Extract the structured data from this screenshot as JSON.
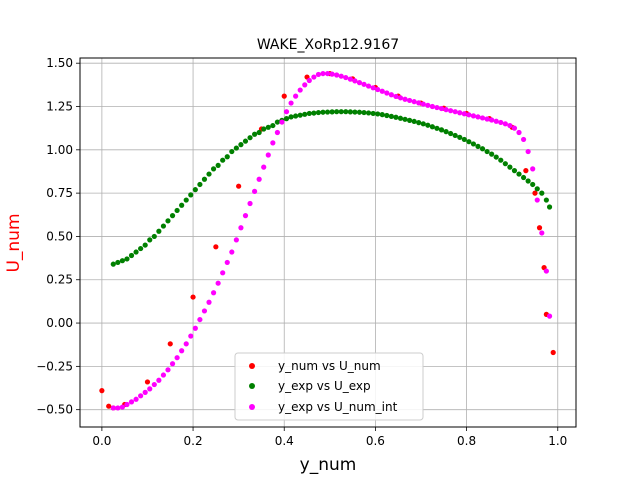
{
  "chart_data": {
    "type": "scatter",
    "title": "WAKE_XoRp12.9167",
    "xlabel": "y_num",
    "ylabel": "U_num",
    "ylabel_color": "#ff0000",
    "xlim": [
      -0.048,
      1.04
    ],
    "ylim": [
      -0.6,
      1.53
    ],
    "xticks": [
      0.0,
      0.2,
      0.4,
      0.6,
      0.8,
      1.0
    ],
    "xtick_labels": [
      "0.0",
      "0.2",
      "0.4",
      "0.6",
      "0.8",
      "1.0"
    ],
    "yticks": [
      -0.5,
      -0.25,
      0.0,
      0.25,
      0.5,
      0.75,
      1.0,
      1.25,
      1.5
    ],
    "ytick_labels": [
      "−0.50",
      "−0.25",
      "0.00",
      "0.25",
      "0.50",
      "0.75",
      "1.00",
      "1.25",
      "1.50"
    ],
    "grid": true,
    "legend_position": "bottom-center",
    "series": [
      {
        "name": "y_num vs U_num",
        "color": "#ff0000",
        "x": [
          0.0,
          0.015,
          0.025,
          0.05,
          0.1,
          0.15,
          0.2,
          0.25,
          0.3,
          0.35,
          0.4,
          0.45,
          0.5,
          0.55,
          0.6,
          0.65,
          0.7,
          0.75,
          0.8,
          0.85,
          0.9,
          0.93,
          0.95,
          0.96,
          0.97,
          0.975,
          0.99
        ],
        "y": [
          -0.39,
          -0.48,
          -0.49,
          -0.47,
          -0.34,
          -0.12,
          0.15,
          0.44,
          0.79,
          1.12,
          1.31,
          1.42,
          1.44,
          1.41,
          1.36,
          1.31,
          1.27,
          1.24,
          1.21,
          1.18,
          1.13,
          0.88,
          0.75,
          0.55,
          0.32,
          0.05,
          -0.17
        ]
      },
      {
        "name": "y_exp vs U_exp",
        "color": "#008000",
        "x": [
          0.025,
          0.035,
          0.045,
          0.055,
          0.065,
          0.075,
          0.085,
          0.095,
          0.105,
          0.115,
          0.125,
          0.135,
          0.145,
          0.155,
          0.165,
          0.175,
          0.185,
          0.195,
          0.205,
          0.215,
          0.225,
          0.235,
          0.245,
          0.255,
          0.265,
          0.275,
          0.285,
          0.295,
          0.305,
          0.315,
          0.325,
          0.335,
          0.345,
          0.355,
          0.365,
          0.375,
          0.385,
          0.395,
          0.405,
          0.415,
          0.425,
          0.435,
          0.445,
          0.455,
          0.465,
          0.475,
          0.485,
          0.495,
          0.505,
          0.515,
          0.525,
          0.535,
          0.545,
          0.555,
          0.565,
          0.575,
          0.585,
          0.595,
          0.605,
          0.615,
          0.625,
          0.635,
          0.645,
          0.655,
          0.665,
          0.675,
          0.685,
          0.695,
          0.705,
          0.715,
          0.725,
          0.735,
          0.745,
          0.755,
          0.765,
          0.775,
          0.785,
          0.795,
          0.805,
          0.815,
          0.825,
          0.835,
          0.845,
          0.855,
          0.865,
          0.875,
          0.885,
          0.895,
          0.905,
          0.915,
          0.925,
          0.935,
          0.945,
          0.955,
          0.965,
          0.975,
          0.982
        ],
        "y": [
          0.34,
          0.35,
          0.36,
          0.37,
          0.39,
          0.41,
          0.43,
          0.45,
          0.48,
          0.5,
          0.53,
          0.56,
          0.59,
          0.62,
          0.65,
          0.68,
          0.71,
          0.74,
          0.77,
          0.8,
          0.83,
          0.86,
          0.89,
          0.91,
          0.94,
          0.96,
          0.99,
          1.01,
          1.03,
          1.05,
          1.07,
          1.09,
          1.1,
          1.12,
          1.13,
          1.14,
          1.16,
          1.17,
          1.18,
          1.19,
          1.195,
          1.2,
          1.205,
          1.21,
          1.212,
          1.215,
          1.217,
          1.218,
          1.219,
          1.22,
          1.22,
          1.22,
          1.219,
          1.218,
          1.217,
          1.215,
          1.213,
          1.21,
          1.207,
          1.203,
          1.198,
          1.193,
          1.188,
          1.182,
          1.176,
          1.17,
          1.164,
          1.157,
          1.15,
          1.142,
          1.133,
          1.124,
          1.115,
          1.105,
          1.094,
          1.083,
          1.072,
          1.06,
          1.047,
          1.034,
          1.02,
          1.006,
          0.99,
          0.975,
          0.958,
          0.94,
          0.92,
          0.9,
          0.88,
          0.86,
          0.84,
          0.82,
          0.8,
          0.775,
          0.75,
          0.71,
          0.67
        ]
      },
      {
        "name": "y_exp vs U_num_int",
        "color": "#ff00ff",
        "x": [
          0.025,
          0.035,
          0.045,
          0.055,
          0.065,
          0.075,
          0.085,
          0.095,
          0.105,
          0.115,
          0.125,
          0.135,
          0.145,
          0.155,
          0.165,
          0.175,
          0.185,
          0.195,
          0.205,
          0.215,
          0.225,
          0.235,
          0.245,
          0.255,
          0.265,
          0.275,
          0.285,
          0.295,
          0.305,
          0.315,
          0.325,
          0.335,
          0.345,
          0.355,
          0.365,
          0.375,
          0.385,
          0.395,
          0.405,
          0.415,
          0.425,
          0.435,
          0.445,
          0.455,
          0.465,
          0.475,
          0.485,
          0.495,
          0.505,
          0.515,
          0.525,
          0.535,
          0.545,
          0.555,
          0.565,
          0.575,
          0.585,
          0.595,
          0.605,
          0.615,
          0.625,
          0.635,
          0.645,
          0.655,
          0.665,
          0.675,
          0.685,
          0.695,
          0.705,
          0.715,
          0.725,
          0.735,
          0.745,
          0.755,
          0.765,
          0.775,
          0.785,
          0.795,
          0.805,
          0.815,
          0.825,
          0.835,
          0.845,
          0.855,
          0.865,
          0.875,
          0.885,
          0.895,
          0.905,
          0.915,
          0.925,
          0.935,
          0.945,
          0.955,
          0.965,
          0.975,
          0.982
        ],
        "y": [
          -0.49,
          -0.49,
          -0.485,
          -0.47,
          -0.455,
          -0.44,
          -0.42,
          -0.4,
          -0.38,
          -0.355,
          -0.33,
          -0.3,
          -0.27,
          -0.235,
          -0.2,
          -0.16,
          -0.12,
          -0.075,
          -0.03,
          0.02,
          0.07,
          0.12,
          0.175,
          0.23,
          0.29,
          0.35,
          0.41,
          0.48,
          0.55,
          0.62,
          0.69,
          0.76,
          0.83,
          0.9,
          0.97,
          1.04,
          1.1,
          1.16,
          1.22,
          1.27,
          1.31,
          1.345,
          1.375,
          1.4,
          1.42,
          1.435,
          1.44,
          1.44,
          1.437,
          1.432,
          1.425,
          1.417,
          1.408,
          1.398,
          1.388,
          1.378,
          1.368,
          1.358,
          1.348,
          1.338,
          1.328,
          1.318,
          1.308,
          1.3,
          1.292,
          1.285,
          1.278,
          1.271,
          1.264,
          1.257,
          1.25,
          1.244,
          1.238,
          1.232,
          1.226,
          1.22,
          1.214,
          1.208,
          1.202,
          1.196,
          1.19,
          1.184,
          1.178,
          1.172,
          1.165,
          1.158,
          1.15,
          1.14,
          1.125,
          1.1,
          1.06,
          0.99,
          0.89,
          0.71,
          0.52,
          0.3,
          0.04
        ]
      }
    ]
  }
}
